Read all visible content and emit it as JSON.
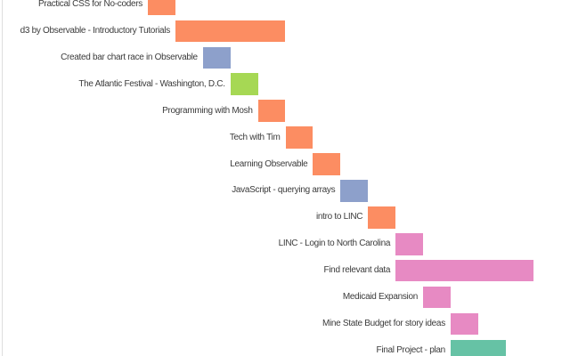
{
  "chart_data": {
    "type": "bar",
    "subtype": "gantt",
    "title": "",
    "xlabel": "",
    "ylabel": "",
    "axes_visible": false,
    "grid": false,
    "legend": null,
    "background_color": "#ffffff",
    "label_color": "#3b3b3b",
    "left_border_color": "#dedede",
    "palette": {
      "orange": "#fc8d62",
      "blue": "#8da0cb",
      "green": "#a6d854",
      "pink": "#e78ac3",
      "teal": "#66c2a5"
    },
    "time_domain": [
      0,
      14
    ],
    "tasks": [
      {
        "label": "Practical CSS for No-coders",
        "start": 0,
        "duration": 1,
        "color": "orange"
      },
      {
        "label": "d3 by Observable - Introductory Tutorials",
        "start": 1,
        "duration": 4,
        "color": "orange"
      },
      {
        "label": "Created bar chart race in Observable",
        "start": 2,
        "duration": 1,
        "color": "blue"
      },
      {
        "label": "The Atlantic Festival - Washington, D.C.",
        "start": 3,
        "duration": 1,
        "color": "green"
      },
      {
        "label": "Programming with Mosh",
        "start": 4,
        "duration": 1,
        "color": "orange"
      },
      {
        "label": "Tech with Tim",
        "start": 5,
        "duration": 1,
        "color": "orange"
      },
      {
        "label": "Learning Observable",
        "start": 6,
        "duration": 1,
        "color": "orange"
      },
      {
        "label": "JavaScript - querying arrays",
        "start": 7,
        "duration": 1,
        "color": "blue"
      },
      {
        "label": "intro to LINC",
        "start": 8,
        "duration": 1,
        "color": "orange"
      },
      {
        "label": "LINC - Login to North Carolina",
        "start": 9,
        "duration": 1,
        "color": "pink"
      },
      {
        "label": "Find relevant data",
        "start": 9,
        "duration": 5,
        "color": "pink"
      },
      {
        "label": "Medicaid Expansion",
        "start": 10,
        "duration": 1,
        "color": "pink"
      },
      {
        "label": "Mine State Budget for story ideas",
        "start": 11,
        "duration": 1,
        "color": "pink"
      },
      {
        "label": "Final Project - plan",
        "start": 11,
        "duration": 2,
        "color": "teal"
      }
    ]
  }
}
